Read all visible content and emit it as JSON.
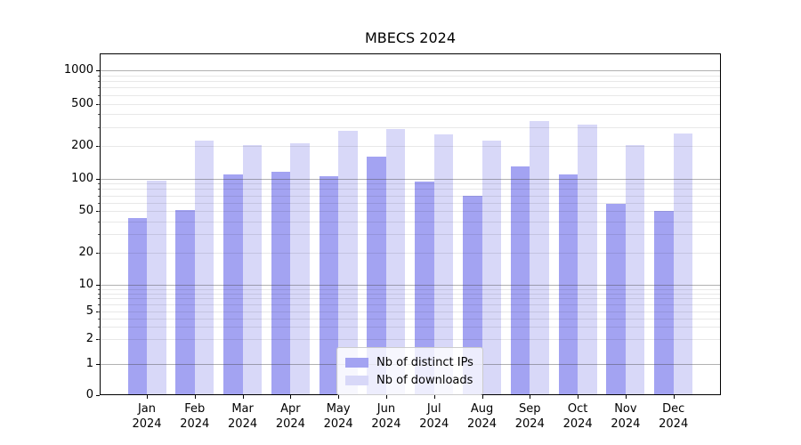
{
  "chart_data": {
    "type": "bar",
    "title": "MBECS 2024",
    "yscale": "symlog",
    "grid": true,
    "legend_position": "lower center",
    "x_year": "2024",
    "categories": [
      "Jan",
      "Feb",
      "Mar",
      "Apr",
      "May",
      "Jun",
      "Jul",
      "Aug",
      "Sep",
      "Oct",
      "Nov",
      "Dec"
    ],
    "y_ticks": [
      0,
      1,
      2,
      5,
      10,
      20,
      50,
      100,
      200,
      500,
      1000
    ],
    "ylim": [
      0,
      1430
    ],
    "series": [
      {
        "name": "Nb of distinct IPs",
        "color": "#a3a3f2",
        "values": [
          43,
          51,
          110,
          116,
          105,
          160,
          94,
          70,
          130,
          110,
          59,
          50
        ]
      },
      {
        "name": "Nb of downloads",
        "color": "#d8d8f8",
        "values": [
          95,
          225,
          205,
          210,
          280,
          290,
          255,
          225,
          340,
          315,
          205,
          260
        ]
      }
    ]
  }
}
